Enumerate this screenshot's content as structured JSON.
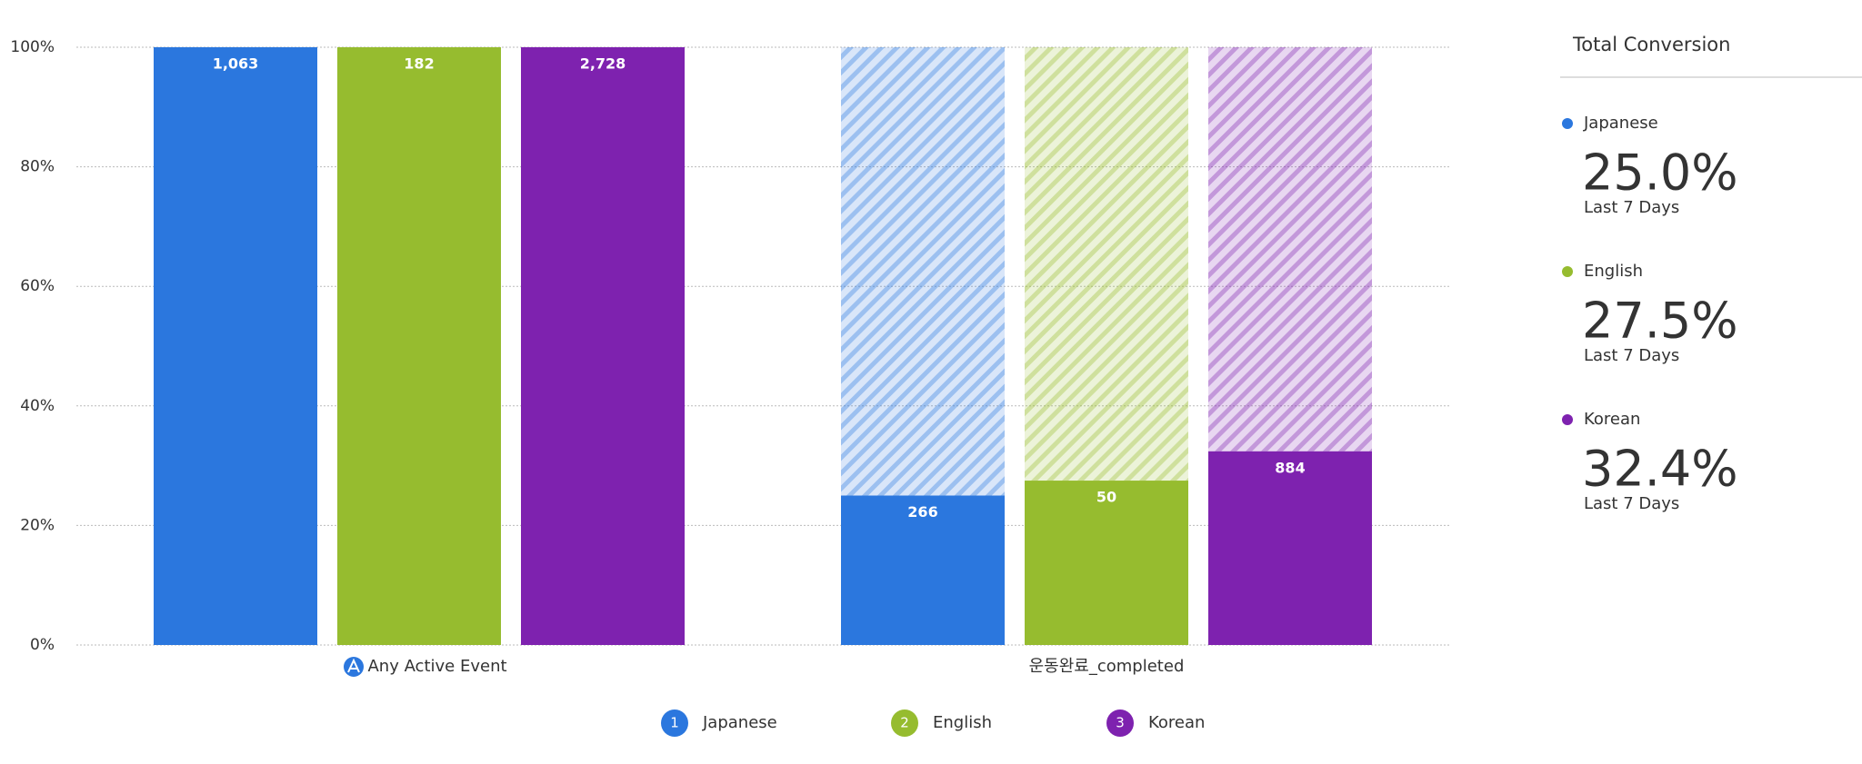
{
  "chart_data": {
    "type": "funnel",
    "categories": [
      "Any Active Event",
      "운동완료_completed"
    ],
    "series": [
      {
        "name": "Japanese",
        "color": "#2b77de",
        "values": [
          100,
          25.0
        ],
        "count_labels": [
          "1,063",
          "266"
        ],
        "legend_marker": "1"
      },
      {
        "name": "English",
        "color": "#96bc2f",
        "values": [
          100,
          27.5
        ],
        "count_labels": [
          "182",
          "50"
        ],
        "legend_marker": "2"
      },
      {
        "name": "Korean",
        "color": "#7e22af",
        "values": [
          100,
          32.4
        ],
        "count_labels": [
          "2,728",
          "884"
        ],
        "legend_marker": "3"
      }
    ],
    "ylim": [
      0,
      100
    ],
    "yticks": [
      {
        "value": 0,
        "label": "0%"
      },
      {
        "value": 20,
        "label": "20%"
      },
      {
        "value": 40,
        "label": "40%"
      },
      {
        "value": 60,
        "label": "60%"
      },
      {
        "value": 80,
        "label": "80%"
      },
      {
        "value": 100,
        "label": "100%"
      }
    ],
    "grid": true
  },
  "panel": {
    "title": "Total Conversion",
    "items": [
      {
        "value": "25.0%",
        "period": "Last 7 Days"
      },
      {
        "value": "27.5%",
        "period": "Last 7 Days"
      },
      {
        "value": "32.4%",
        "period": "Last 7 Days"
      }
    ]
  }
}
